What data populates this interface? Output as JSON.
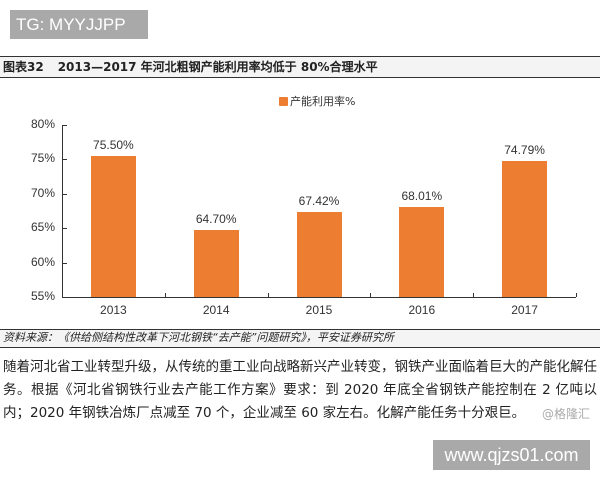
{
  "watermark_top": "TG: MYYJJPP",
  "figure": {
    "number": "图表32",
    "title": "2013—2017 年河北粗钢产能利用率均低于 80%合理水平"
  },
  "source": "资料来源：《供给侧结构性改革下河北钢铁“去产能”问题研究》，平安证券研究所",
  "paragraph": "随着河北省工业转型升级，从传统的重工业向战略新兴产业转变，钢铁产业面临着巨大的产能化解任务。根据《河北省钢铁行业去产能工作方案》要求：到 2020 年底全省钢铁产能控制在 2 亿吨以内；2020 年钢铁冶炼厂点减至 70 个，企业减至 60 家左右。化解产能任务十分艰巨。",
  "credit": "@格隆汇",
  "watermark_bottom": "www.qjzs01.com",
  "colors": {
    "bar": "#ED7D31"
  },
  "chart_data": {
    "type": "bar",
    "title": "2013—2017 年河北粗钢产能利用率均低于 80%合理水平",
    "categories": [
      "2013",
      "2014",
      "2015",
      "2016",
      "2017"
    ],
    "series": [
      {
        "name": "产能利用率%",
        "values": [
          75.5,
          64.7,
          67.42,
          68.01,
          74.79
        ]
      }
    ],
    "data_labels": [
      "75.50%",
      "64.70%",
      "67.42%",
      "68.01%",
      "74.79%"
    ],
    "yticks": [
      "80%",
      "75%",
      "70%",
      "65%",
      "60%",
      "55%"
    ],
    "xlabel": "",
    "ylabel": "",
    "ylim": [
      55,
      80
    ],
    "grid": false,
    "legend_position": "top-center"
  }
}
